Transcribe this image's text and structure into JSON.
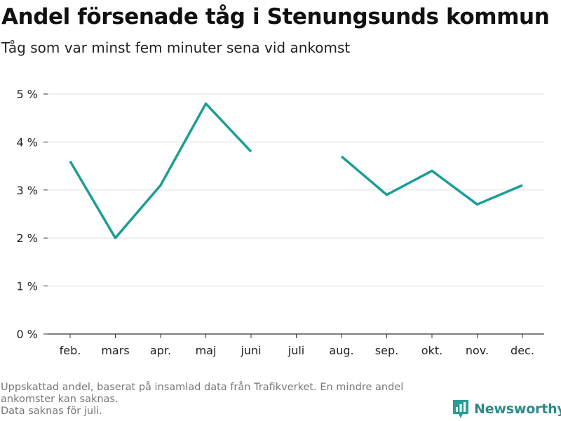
{
  "title": "Andel försenade tåg i Stenungsunds kommun",
  "subtitle": "Tåg som var minst fem minuter sena vid ankomst",
  "notes": [
    "Uppskattad andel, baserat på insamlad data från Trafikverket. En mindre andel ankomster kan saknas.",
    "Data saknas för juli."
  ],
  "brand": {
    "name": "Newsworthy",
    "icon": "bar-chart-badge-icon",
    "color": "#2a9d96"
  },
  "chart_data": {
    "type": "line",
    "categories": [
      "feb.",
      "mars",
      "apr.",
      "maj",
      "juni",
      "juli",
      "aug.",
      "sep.",
      "okt.",
      "nov.",
      "dec."
    ],
    "series": [
      {
        "values": [
          3.6,
          2.0,
          3.1,
          4.8,
          3.8,
          null,
          3.7,
          2.9,
          3.4,
          2.7,
          3.1
        ]
      }
    ],
    "ylim": [
      0,
      5
    ],
    "yticks": [
      0,
      1,
      2,
      3,
      4,
      5
    ],
    "ytick_labels": [
      "0 %",
      "1 %",
      "2 %",
      "3 %",
      "4 %",
      "5 %"
    ],
    "grid": true,
    "line_color": "#1a9e96"
  }
}
